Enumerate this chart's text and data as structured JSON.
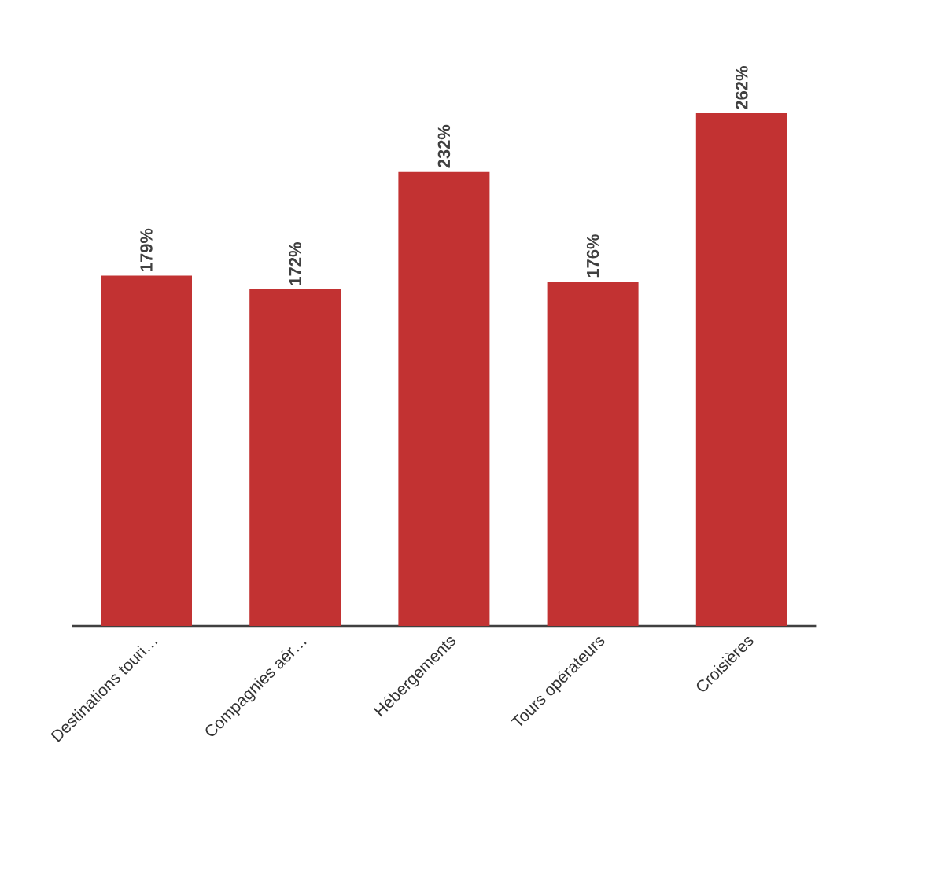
{
  "chart_data": {
    "type": "bar",
    "categories": [
      "Destinations touri…",
      "Compagnies aér…",
      "Hébergements",
      "Tours opérateurs",
      "Croisières"
    ],
    "values": [
      179,
      172,
      232,
      176,
      262
    ],
    "value_labels": [
      "179%",
      "172%",
      "232%",
      "176%",
      "262%"
    ],
    "color": "#c23232"
  }
}
